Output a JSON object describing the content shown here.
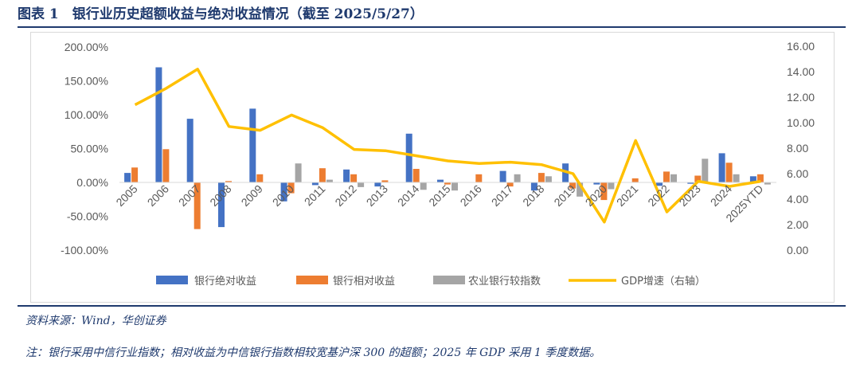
{
  "header": {
    "title": "图表 1　银行业历史超额收益与绝对收益情况（截至 2025/5/27）"
  },
  "footer": {
    "source": "资料来源：Wind，华创证券",
    "note": "注：银行采用中信行业指数；相对收益为中信银行指数相较宽基沪深 300 的超额；2025 年 GDP 采用 1 季度数据。"
  },
  "colors": {
    "series1": "#4472C4",
    "series2": "#ED7D31",
    "series3": "#A5A5A5",
    "line": "#FFC000",
    "rule": "#1f3a6e"
  },
  "chart_data": {
    "type": "bar",
    "categories": [
      "2005",
      "2006",
      "2007",
      "2008",
      "2009",
      "2010",
      "2011",
      "2012",
      "2013",
      "2014",
      "2015",
      "2016",
      "2017",
      "2018",
      "2019",
      "2020",
      "2021",
      "2022",
      "2023",
      "2024",
      "2025YTD"
    ],
    "left_axis": {
      "min": -100,
      "max": 200,
      "step": 50,
      "ticks": [
        "-100.00%",
        "-50.00%",
        "0.00%",
        "50.00%",
        "100.00%",
        "150.00%",
        "200.00%"
      ]
    },
    "right_axis": {
      "min": 0,
      "max": 16,
      "step": 2,
      "ticks": [
        "0.00",
        "2.00",
        "4.00",
        "6.00",
        "8.00",
        "10.00",
        "12.00",
        "14.00",
        "16.00"
      ]
    },
    "series": [
      {
        "name": "银行绝对收益",
        "axis": "left",
        "type": "bar",
        "values": [
          14,
          170,
          94,
          -66,
          109,
          -28,
          -4,
          19,
          -6,
          72,
          4,
          0,
          17,
          -12,
          28,
          -3,
          0,
          -5,
          -2,
          43,
          9
        ]
      },
      {
        "name": "银行相对收益",
        "axis": "left",
        "type": "bar",
        "values": [
          22,
          49,
          -69,
          2,
          12,
          -16,
          21,
          12,
          3,
          20,
          -3,
          12,
          -6,
          14,
          -9,
          -26,
          6,
          16,
          10,
          29,
          12
        ]
      },
      {
        "name": "农业银行较指数",
        "axis": "left",
        "type": "bar",
        "values": [
          0,
          0,
          0,
          0,
          0,
          28,
          4,
          -7,
          0,
          -11,
          -12,
          0,
          12,
          9,
          -21,
          -10,
          0,
          12,
          35,
          12,
          -3
        ]
      },
      {
        "name": "GDP增速（右轴）",
        "axis": "right",
        "type": "line",
        "values": [
          11.4,
          12.7,
          14.2,
          9.7,
          9.4,
          10.6,
          9.6,
          7.9,
          7.8,
          7.4,
          7.0,
          6.8,
          6.9,
          6.7,
          6.0,
          2.2,
          8.6,
          3.0,
          5.4,
          5.0,
          5.4
        ]
      }
    ],
    "legend": [
      "银行绝对收益",
      "银行相对收益",
      "农业银行较指数",
      "GDP增速（右轴）"
    ],
    "legend_position": "bottom"
  }
}
